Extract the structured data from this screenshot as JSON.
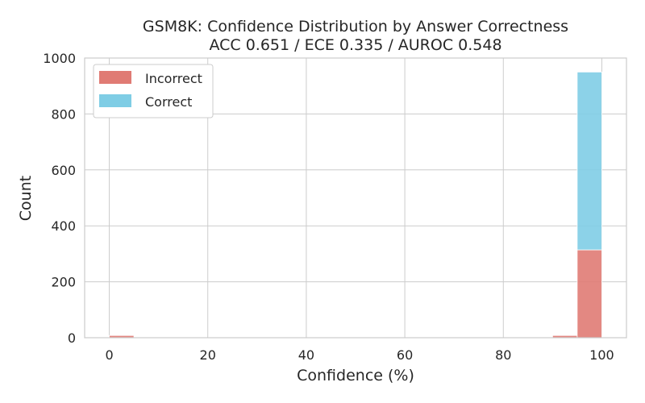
{
  "chart_data": {
    "type": "bar",
    "title": "GSM8K: Confidence Distribution by Answer Correctness",
    "subtitle": "ACC 0.651 / ECE 0.335 / AUROC 0.548",
    "xlabel": "Confidence (%)",
    "ylabel": "Count",
    "xlim": [
      -5,
      105
    ],
    "ylim": [
      0,
      1000
    ],
    "xticks": [
      "0",
      "20",
      "40",
      "60",
      "80",
      "100"
    ],
    "yticks": [
      "0",
      "200",
      "400",
      "600",
      "800",
      "1000"
    ],
    "grid": true,
    "stacked": true,
    "legend_position": "top-left",
    "bins": [
      {
        "start": 0,
        "end": 5
      },
      {
        "start": 85,
        "end": 90
      },
      {
        "start": 90,
        "end": 95
      },
      {
        "start": 95,
        "end": 100
      }
    ],
    "series": [
      {
        "name": "Incorrect",
        "color": "#e07b74",
        "values": [
          8,
          1,
          8,
          314
        ]
      },
      {
        "name": "Correct",
        "color": "#7fcde5",
        "values": [
          0,
          0,
          0,
          636
        ]
      }
    ]
  }
}
